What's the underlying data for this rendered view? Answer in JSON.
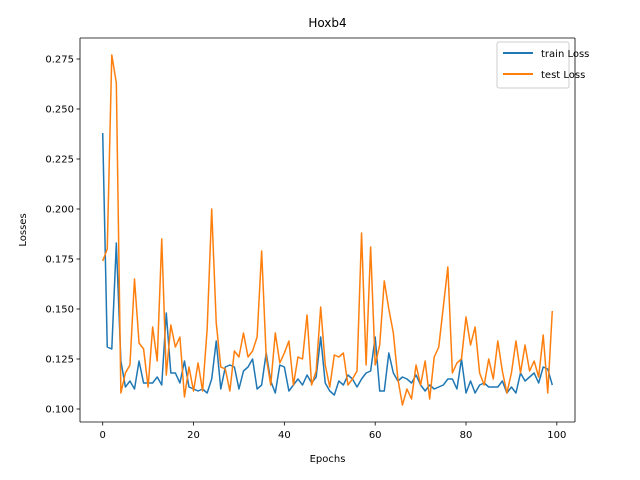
{
  "chart_data": {
    "type": "line",
    "title": "Hoxb4",
    "xlabel": "Epochs",
    "ylabel": "Losses",
    "xlim": [
      -5,
      104
    ],
    "ylim": [
      0.0935,
      0.2855
    ],
    "xticks": [
      0,
      20,
      40,
      60,
      80,
      100
    ],
    "yticks": [
      0.1,
      0.125,
      0.15,
      0.175,
      0.2,
      0.225,
      0.25,
      0.275
    ],
    "ytick_labels": [
      "0.100",
      "0.125",
      "0.150",
      "0.175",
      "0.200",
      "0.225",
      "0.250",
      "0.275"
    ],
    "grid": false,
    "legend_position": "top-right",
    "series": [
      {
        "name": "train Loss",
        "color": "#1f77b4",
        "values": [
          0.238,
          0.131,
          0.13,
          0.183,
          0.124,
          0.111,
          0.114,
          0.11,
          0.124,
          0.113,
          0.113,
          0.113,
          0.116,
          0.112,
          0.148,
          0.118,
          0.118,
          0.113,
          0.124,
          0.111,
          0.11,
          0.109,
          0.11,
          0.108,
          0.115,
          0.134,
          0.11,
          0.121,
          0.122,
          0.121,
          0.11,
          0.119,
          0.121,
          0.125,
          0.11,
          0.112,
          0.128,
          0.114,
          0.108,
          0.122,
          0.121,
          0.109,
          0.112,
          0.115,
          0.112,
          0.117,
          0.113,
          0.116,
          0.136,
          0.113,
          0.109,
          0.107,
          0.114,
          0.112,
          0.117,
          0.115,
          0.111,
          0.115,
          0.118,
          0.119,
          0.136,
          0.109,
          0.109,
          0.128,
          0.118,
          0.114,
          0.116,
          0.115,
          0.113,
          0.117,
          0.112,
          0.109,
          0.112,
          0.11,
          0.111,
          0.112,
          0.115,
          0.115,
          0.11,
          0.125,
          0.108,
          0.114,
          0.108,
          0.112,
          0.113,
          0.111,
          0.111,
          0.111,
          0.114,
          0.108,
          0.111,
          0.108,
          0.118,
          0.114,
          0.116,
          0.118,
          0.113,
          0.121,
          0.12,
          0.112
        ]
      },
      {
        "name": "test Loss",
        "color": "#ff7f0e",
        "values": [
          0.174,
          0.18,
          0.277,
          0.263,
          0.108,
          0.118,
          0.122,
          0.165,
          0.133,
          0.13,
          0.111,
          0.141,
          0.124,
          0.185,
          0.117,
          0.142,
          0.131,
          0.136,
          0.106,
          0.121,
          0.109,
          0.123,
          0.109,
          0.14,
          0.2,
          0.143,
          0.121,
          0.12,
          0.109,
          0.129,
          0.126,
          0.138,
          0.126,
          0.129,
          0.136,
          0.179,
          0.126,
          0.112,
          0.138,
          0.123,
          0.128,
          0.134,
          0.112,
          0.126,
          0.125,
          0.147,
          0.112,
          0.119,
          0.151,
          0.122,
          0.111,
          0.127,
          0.126,
          0.128,
          0.112,
          0.115,
          0.119,
          0.188,
          0.122,
          0.181,
          0.122,
          0.132,
          0.164,
          0.15,
          0.138,
          0.115,
          0.102,
          0.11,
          0.105,
          0.122,
          0.112,
          0.124,
          0.105,
          0.126,
          0.131,
          0.151,
          0.171,
          0.118,
          0.123,
          0.125,
          0.146,
          0.132,
          0.141,
          0.118,
          0.112,
          0.125,
          0.115,
          0.134,
          0.119,
          0.108,
          0.118,
          0.134,
          0.118,
          0.132,
          0.119,
          0.124,
          0.116,
          0.137,
          0.108,
          0.149
        ]
      }
    ]
  }
}
